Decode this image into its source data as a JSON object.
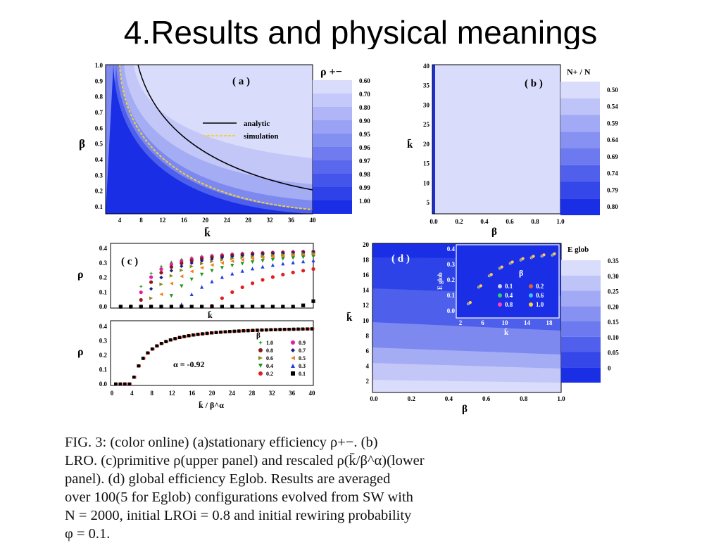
{
  "slide": {
    "title": "4.Results and physical meanings"
  },
  "colors": {
    "lightest": "#d9dcfb",
    "darkest": "#1a2ee6",
    "curve": "#000000",
    "sim": "#f0d040"
  },
  "panel_a": {
    "label": "( a )",
    "cbar_title": "ρ +−",
    "cbar_levels": [
      "0.60",
      "0.70",
      "0.80",
      "0.90",
      "0.95",
      "0.96",
      "0.97",
      "0.98",
      "0.99",
      "1.00"
    ],
    "legend": [
      "analytic",
      "simulation"
    ],
    "xlabel": "k̄",
    "ylabel": "β",
    "xticks": [
      "4",
      "8",
      "12",
      "16",
      "20",
      "24",
      "28",
      "32",
      "36",
      "40"
    ],
    "yticks": [
      "1.0",
      "0.9",
      "0.8",
      "0.7",
      "0.6",
      "0.5",
      "0.4",
      "0.3",
      "0.2",
      "0.1"
    ]
  },
  "panel_b": {
    "label": "( b )",
    "cbar_title": "N+ / N",
    "cbar_levels": [
      "0.50",
      "0.54",
      "0.59",
      "0.64",
      "0.69",
      "0.74",
      "0.79",
      "0.80"
    ],
    "xlabel": "β",
    "ylabel": "k̄",
    "xticks": [
      "0.0",
      "0.2",
      "0.4",
      "0.6",
      "0.8",
      "1.0"
    ],
    "yticks": [
      "40",
      "35",
      "30",
      "25",
      "20",
      "15",
      "10",
      "5"
    ]
  },
  "panel_c": {
    "label": "( c )",
    "ylabel": "ρ",
    "upper_xlabel": "k̄",
    "lower_xlabel": "k̄ / β^α",
    "yticks": [
      "0.4",
      "0.3",
      "0.2",
      "0.1",
      "0.0"
    ],
    "xticks": [
      "0",
      "4",
      "8",
      "12",
      "16",
      "20",
      "24",
      "28",
      "32",
      "36",
      "40"
    ],
    "alpha_text": "α = -0.92",
    "legend_title": "β",
    "legend": [
      "1.0",
      "0.9",
      "0.8",
      "0.7",
      "0.6",
      "0.5",
      "0.4",
      "0.3",
      "0.2",
      "0.1"
    ]
  },
  "panel_d": {
    "label": "( d )",
    "cbar_title": "E glob",
    "cbar_levels": [
      "0.35",
      "0.30",
      "0.25",
      "0.20",
      "0.15",
      "0.10",
      "0.05",
      "0"
    ],
    "xlabel": "β",
    "ylabel": "k̄",
    "xticks": [
      "0.0",
      "0.2",
      "0.4",
      "0.6",
      "0.8",
      "1.0"
    ],
    "yticks": [
      "20",
      "18",
      "16",
      "14",
      "12",
      "10",
      "8",
      "6",
      "4",
      "2"
    ],
    "inset_xlabel": "k̄",
    "inset_ylabel": "E glob",
    "inset_xticks": [
      "2",
      "6",
      "10",
      "14",
      "18"
    ],
    "inset_yticks": [
      "0.4",
      "0.3",
      "0.2",
      "0.1",
      "0.0"
    ],
    "inset_legend_title": "β",
    "inset_legend": [
      "0.1",
      "0.2",
      "0.4",
      "0.6",
      "0.8",
      "1.0"
    ]
  },
  "caption": {
    "line1": "FIG. 3:   (color online) (a)stationary efficiency ρ+−.   (b)",
    "line2": "LRO. (c)primitive ρ(upper panel) and rescaled ρ(k̄/β^α)(lower",
    "line3": "panel).   (d) global efficiency Eglob.   Results are averaged",
    "line4": "over 100(5 for Eglob) configurations evolved from SW with",
    "line5": "N = 2000, initial LROi = 0.8 and initial rewiring probability",
    "line6": "φ = 0.1."
  }
}
